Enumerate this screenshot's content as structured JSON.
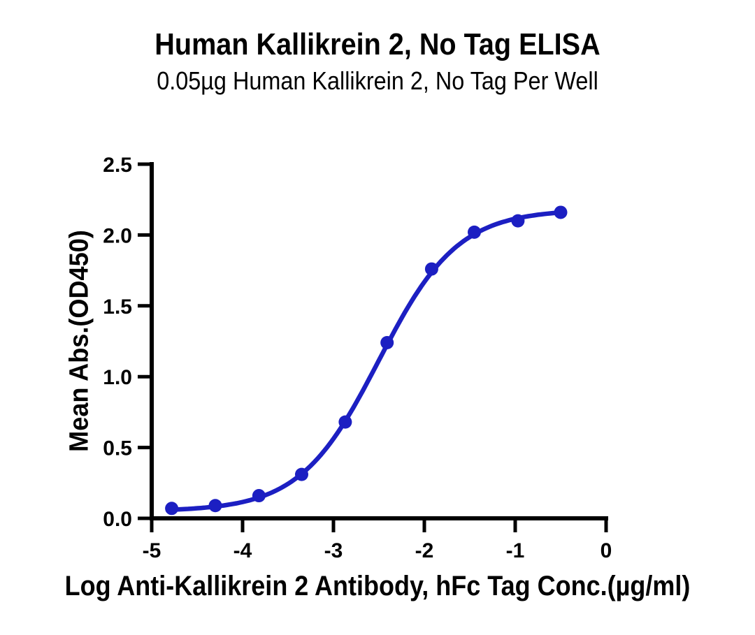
{
  "chart_data": {
    "type": "scatter",
    "title": "Human Kallikrein 2, No Tag ELISA",
    "subtitle": "0.05µg Human Kallikrein 2, No Tag Per Well",
    "xlabel": "Log Anti-Kallikrein 2 Antibody, hFc Tag Conc.(µg/ml)",
    "ylabel": "Mean Abs.(OD450)",
    "xlim": [
      -5,
      0
    ],
    "ylim": [
      0,
      2.5
    ],
    "x_ticks": [
      -5,
      -4,
      -3,
      -2,
      -1,
      0
    ],
    "x_tick_labels": [
      "-5",
      "-4",
      "-3",
      "-2",
      "-1",
      "0"
    ],
    "y_ticks": [
      0.0,
      0.5,
      1.0,
      1.5,
      2.0,
      2.5
    ],
    "y_tick_labels": [
      "0.0",
      "0.5",
      "1.0",
      "1.5",
      "2.0",
      "2.5"
    ],
    "grid": false,
    "legend": "none",
    "axis_color": "#000000",
    "background": "#ffffff",
    "series": [
      {
        "name": "Human Kallikrein 2, No Tag",
        "color": "#1c1fc2",
        "marker": "circle",
        "x": [
          -4.78,
          -4.3,
          -3.82,
          -3.35,
          -2.87,
          -2.41,
          -1.92,
          -1.45,
          -0.97,
          -0.5
        ],
        "y": [
          0.07,
          0.09,
          0.16,
          0.31,
          0.68,
          1.24,
          1.76,
          2.02,
          2.1,
          2.16
        ]
      }
    ],
    "fit_curve": {
      "model": "4PL",
      "bottom": 0.05,
      "top": 2.18,
      "logec50": -2.5,
      "hill": 1.0
    }
  }
}
